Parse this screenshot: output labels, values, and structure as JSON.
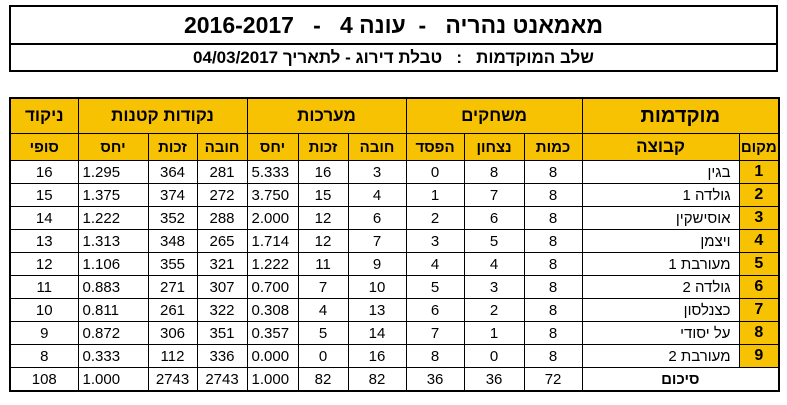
{
  "header": {
    "title": "מאמאנט נהריה   -  עונה 4   -   2016-2017",
    "subtitle": "שלב המוקדמות   :   טבלת דירוג - לתאריך 04/03/2017"
  },
  "table": {
    "group_headers": {
      "main": "מוקדמות",
      "games": "משחקים",
      "sets": "מערכות",
      "small_points": "נקודות קטנות",
      "score": "ניקוד"
    },
    "sub_headers": {
      "place": "מקום",
      "team": "קבוצה",
      "count": "כמות",
      "win": "נצחון",
      "loss": "הפסד",
      "debit": "חובה",
      "credit": "זכות",
      "ratio": "יחס",
      "final": "סופי"
    },
    "rows": [
      {
        "place": "1",
        "team": "בגין",
        "games": "8",
        "wins": "8",
        "losses": "0",
        "sets_debit": "3",
        "sets_credit": "16",
        "sets_ratio": "5.333",
        "pts_debit": "281",
        "pts_credit": "364",
        "pts_ratio": "1.295",
        "score": "16"
      },
      {
        "place": "2",
        "team": "גולדה 1",
        "games": "8",
        "wins": "7",
        "losses": "1",
        "sets_debit": "4",
        "sets_credit": "15",
        "sets_ratio": "3.750",
        "pts_debit": "272",
        "pts_credit": "374",
        "pts_ratio": "1.375",
        "score": "15"
      },
      {
        "place": "3",
        "team": "אוסישקין",
        "games": "8",
        "wins": "6",
        "losses": "2",
        "sets_debit": "6",
        "sets_credit": "12",
        "sets_ratio": "2.000",
        "pts_debit": "288",
        "pts_credit": "352",
        "pts_ratio": "1.222",
        "score": "14"
      },
      {
        "place": "4",
        "team": "ויצמן",
        "games": "8",
        "wins": "5",
        "losses": "3",
        "sets_debit": "7",
        "sets_credit": "12",
        "sets_ratio": "1.714",
        "pts_debit": "265",
        "pts_credit": "348",
        "pts_ratio": "1.313",
        "score": "13"
      },
      {
        "place": "5",
        "team": "מעורבת 1",
        "games": "8",
        "wins": "4",
        "losses": "4",
        "sets_debit": "9",
        "sets_credit": "11",
        "sets_ratio": "1.222",
        "pts_debit": "321",
        "pts_credit": "355",
        "pts_ratio": "1.106",
        "score": "12"
      },
      {
        "place": "6",
        "team": "גולדה 2",
        "games": "8",
        "wins": "3",
        "losses": "5",
        "sets_debit": "10",
        "sets_credit": "7",
        "sets_ratio": "0.700",
        "pts_debit": "307",
        "pts_credit": "271",
        "pts_ratio": "0.883",
        "score": "11"
      },
      {
        "place": "7",
        "team": "כצנלסון",
        "games": "8",
        "wins": "2",
        "losses": "6",
        "sets_debit": "13",
        "sets_credit": "4",
        "sets_ratio": "0.308",
        "pts_debit": "322",
        "pts_credit": "261",
        "pts_ratio": "0.811",
        "score": "10"
      },
      {
        "place": "8",
        "team": "על יסודי",
        "games": "8",
        "wins": "1",
        "losses": "7",
        "sets_debit": "14",
        "sets_credit": "5",
        "sets_ratio": "0.357",
        "pts_debit": "351",
        "pts_credit": "306",
        "pts_ratio": "0.872",
        "score": "9"
      },
      {
        "place": "9",
        "team": "מעורבת 2",
        "games": "8",
        "wins": "0",
        "losses": "8",
        "sets_debit": "16",
        "sets_credit": "0",
        "sets_ratio": "0.000",
        "pts_debit": "336",
        "pts_credit": "112",
        "pts_ratio": "0.333",
        "score": "8"
      }
    ],
    "summary": {
      "label": "סיכום",
      "games": "72",
      "wins": "36",
      "losses": "36",
      "sets_debit": "82",
      "sets_credit": "82",
      "sets_ratio": "1.000",
      "pts_debit": "2743",
      "pts_credit": "2743",
      "pts_ratio": "1.000",
      "score": "108"
    }
  },
  "colors": {
    "header_fill": "#f7c201",
    "border": "#000000"
  }
}
